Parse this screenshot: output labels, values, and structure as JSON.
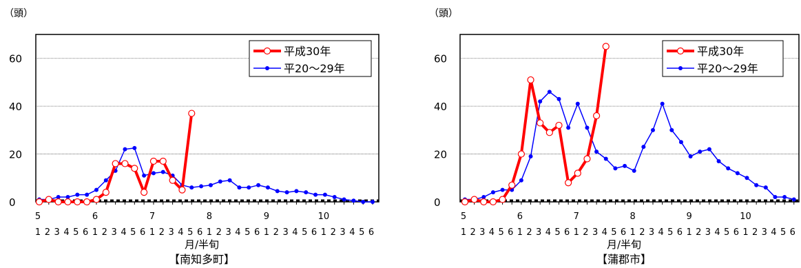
{
  "chart_data": [
    {
      "type": "line",
      "caption": "【南知多町】",
      "ylabel": "（頭）",
      "xlabel": "月/半旬",
      "ylim": [
        0,
        70
      ],
      "yticks": [
        "0",
        "20",
        "40",
        "60"
      ],
      "month_labels": [
        "5",
        "6",
        "7",
        "8",
        "9",
        "10"
      ],
      "pentad_labels": [
        "1",
        "2",
        "3",
        "4",
        "5",
        "6",
        "1",
        "2",
        "3",
        "4",
        "5",
        "6",
        "1",
        "2",
        "3",
        "4",
        "5",
        "6",
        "1",
        "2",
        "3",
        "4",
        "5",
        "6",
        "1",
        "2",
        "3",
        "4",
        "5",
        "6",
        "1",
        "2",
        "3",
        "4",
        "5",
        "6"
      ],
      "legend_position": "top-right",
      "series": [
        {
          "name": "平成30年",
          "color": "#ff0000",
          "values": [
            0,
            1,
            0,
            0,
            0,
            0,
            1,
            4,
            16,
            16,
            14,
            4,
            17,
            17,
            9,
            5,
            37
          ]
        },
        {
          "name": "平20～29年",
          "color": "#0000ff",
          "values": [
            1,
            1,
            2,
            2,
            3,
            3,
            5,
            9,
            13,
            22,
            22.5,
            11,
            12,
            12.5,
            11,
            7,
            6,
            6.5,
            7,
            8.5,
            9,
            6,
            6,
            7,
            6,
            4.5,
            4,
            4.5,
            4,
            3,
            3,
            2,
            1,
            0.5,
            0,
            0
          ]
        }
      ]
    },
    {
      "type": "line",
      "caption": "【蒲郡市】",
      "ylabel": "（頭）",
      "xlabel": "月/半旬",
      "ylim": [
        0,
        70
      ],
      "yticks": [
        "0",
        "20",
        "40",
        "60"
      ],
      "month_labels": [
        "5",
        "6",
        "7",
        "8",
        "9",
        "10"
      ],
      "pentad_labels": [
        "1",
        "2",
        "3",
        "4",
        "5",
        "6",
        "1",
        "2",
        "3",
        "4",
        "5",
        "6",
        "1",
        "2",
        "3",
        "4",
        "5",
        "6",
        "1",
        "2",
        "3",
        "4",
        "5",
        "6",
        "1",
        "2",
        "3",
        "4",
        "5",
        "6",
        "1",
        "2",
        "3",
        "4",
        "5",
        "6"
      ],
      "legend_position": "top-right",
      "series": [
        {
          "name": "平成30年",
          "color": "#ff0000",
          "values": [
            0,
            1,
            0,
            0,
            1,
            7,
            20,
            51,
            33,
            29,
            32,
            8,
            12,
            18,
            36,
            65
          ]
        },
        {
          "name": "平20～29年",
          "color": "#0000ff",
          "values": [
            1,
            1,
            2,
            4,
            5,
            5,
            9,
            19,
            42,
            46,
            43,
            31,
            41,
            31,
            21,
            18,
            14,
            15,
            13,
            23,
            30,
            41,
            30,
            25,
            19,
            21,
            22,
            17,
            14,
            12,
            10,
            7,
            6,
            2,
            2,
            1
          ]
        }
      ]
    }
  ]
}
